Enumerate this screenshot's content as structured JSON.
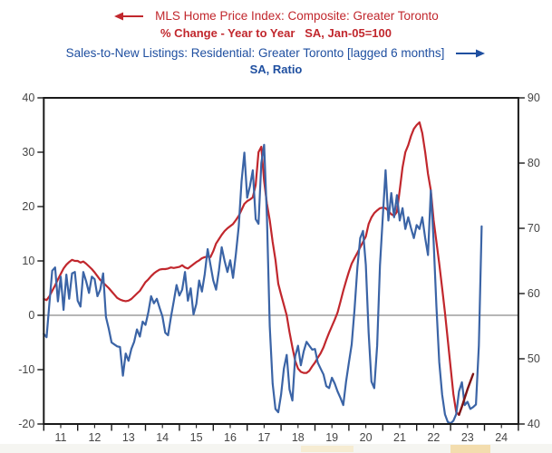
{
  "header": {
    "series1": {
      "title": "MLS Home Price Index: Composite: Greater Toronto",
      "subtitle": "% Change - Year to Year   SA, Jan-05=100",
      "color": "#c1272d",
      "arrow_direction": "left"
    },
    "series2": {
      "title": "Sales-to-New Listings: Residential: Greater Toronto [lagged 6 months]",
      "subtitle": "SA, Ratio",
      "color": "#1f4fa0",
      "arrow_direction": "right"
    }
  },
  "chart_data": {
    "type": "line",
    "title": "MLS Home Price Index vs Sales-to-New Listings, Greater Toronto",
    "x_axis": {
      "start_year": 2011,
      "end_year": 2025,
      "tick_labels": [
        "11",
        "12",
        "13",
        "14",
        "15",
        "16",
        "17",
        "18",
        "19",
        "20",
        "21",
        "22",
        "23",
        "24"
      ],
      "minor_ticks": "semiannual"
    },
    "left_axis": {
      "label": "% Change - Year to Year",
      "min": -20,
      "max": 40,
      "ticks": [
        40,
        30,
        20,
        10,
        0,
        -10,
        -20
      ]
    },
    "right_axis": {
      "label": "SA, Ratio",
      "min": 40,
      "max": 90,
      "ticks": [
        90,
        80,
        70,
        60,
        50,
        40
      ]
    },
    "zero_reference_line_left_value": 0,
    "grid": false,
    "series": [
      {
        "name": "MLS Home Price Index Composite Greater Toronto, % change year-to-year",
        "axis": "left",
        "color": "#c1272d",
        "width": 2.2,
        "start": "2011-01",
        "freq": "monthly",
        "values": [
          3.0,
          2.8,
          3.5,
          4.5,
          5.5,
          6.6,
          7.6,
          8.6,
          9.3,
          9.8,
          10.2,
          10.0,
          10.0,
          9.7,
          9.9,
          9.5,
          9.0,
          8.5,
          7.9,
          7.2,
          6.5,
          6.0,
          5.5,
          5.0,
          4.4,
          3.8,
          3.2,
          2.9,
          2.7,
          2.6,
          2.7,
          3.0,
          3.5,
          4.0,
          4.5,
          5.3,
          6.1,
          6.6,
          7.2,
          7.7,
          8.1,
          8.4,
          8.5,
          8.5,
          8.6,
          8.8,
          8.7,
          8.8,
          8.9,
          9.2,
          8.8,
          8.6,
          9.0,
          9.4,
          9.8,
          10.1,
          10.5,
          10.7,
          10.8,
          10.7,
          11.8,
          13.2,
          14.0,
          14.8,
          15.5,
          16.0,
          16.4,
          16.8,
          17.5,
          18.3,
          19.4,
          20.5,
          21.0,
          21.3,
          21.7,
          24.0,
          30.0,
          31.0,
          24.7,
          20.5,
          17.5,
          13.5,
          10.2,
          5.8,
          3.8,
          1.9,
          0.0,
          -3.1,
          -5.9,
          -8.4,
          -9.8,
          -10.4,
          -10.6,
          -10.6,
          -10.2,
          -9.4,
          -8.7,
          -7.8,
          -7.0,
          -5.9,
          -4.5,
          -3.2,
          -2.0,
          -0.8,
          0.5,
          2.5,
          4.5,
          6.3,
          8.0,
          9.5,
          10.5,
          11.5,
          12.5,
          13.5,
          14.5,
          16.8,
          18.0,
          18.8,
          19.3,
          19.7,
          19.8,
          19.7,
          19.2,
          18.6,
          18.3,
          19.0,
          23.0,
          27.2,
          30.0,
          31.3,
          33.0,
          34.3,
          35.0,
          35.5,
          33.5,
          30.0,
          26.0,
          23.0,
          17.5,
          13.5,
          9.5,
          5.0,
          0.5,
          -4.5,
          -9.5,
          -14.5,
          -17.8,
          -18.3
        ]
      },
      {
        "name": "Sales-to-New Listings Residential Greater Toronto, lagged 6 months, SA ratio",
        "axis": "right",
        "color": "#3b64a6",
        "width": 2.2,
        "start": "2011-01",
        "freq": "monthly",
        "values": [
          53.8,
          53.3,
          58.5,
          63.5,
          64.0,
          58.8,
          62.6,
          57.5,
          62.9,
          59.2,
          63.1,
          63.3,
          58.9,
          58.0,
          63.3,
          61.9,
          60.1,
          62.6,
          62.2,
          59.6,
          60.6,
          63.1,
          56.4,
          54.6,
          52.5,
          52.2,
          51.9,
          51.8,
          47.4,
          50.8,
          49.7,
          51.5,
          52.6,
          54.5,
          53.4,
          55.7,
          55.2,
          57.1,
          59.6,
          58.5,
          59.2,
          57.8,
          56.5,
          54.0,
          53.6,
          56.4,
          58.8,
          61.3,
          59.7,
          60.6,
          63.3,
          58.9,
          60.8,
          56.8,
          58.4,
          62.0,
          60.3,
          63.0,
          66.8,
          64.4,
          62.0,
          60.6,
          63.5,
          67.1,
          65.0,
          63.3,
          65.1,
          62.4,
          66.0,
          70.3,
          77.2,
          81.6,
          74.7,
          76.5,
          78.9,
          71.4,
          70.7,
          80.0,
          82.8,
          71.7,
          55.0,
          46.2,
          42.3,
          41.8,
          44.5,
          48.5,
          50.6,
          45.3,
          43.6,
          50.4,
          52.0,
          49.0,
          51.1,
          52.6,
          52.0,
          51.4,
          51.5,
          49.4,
          48.5,
          47.6,
          45.8,
          45.5,
          47.1,
          46.2,
          45.0,
          44.0,
          42.9,
          46.5,
          49.4,
          52.2,
          57.5,
          64.0,
          68.5,
          69.6,
          64.4,
          54.0,
          46.5,
          45.5,
          52.0,
          64.3,
          71.7,
          78.9,
          71.2,
          75.4,
          71.7,
          75.1,
          71.2,
          73.1,
          69.9,
          71.7,
          70.0,
          68.5,
          70.5,
          69.9,
          71.7,
          68.5,
          65.9,
          75.8,
          68.0,
          58.0,
          49.5,
          44.5,
          41.5,
          40.3,
          40.1,
          40.5,
          41.5,
          45.0,
          46.4,
          42.9,
          43.4,
          42.3,
          42.6,
          43.0,
          52.0,
          70.3
        ]
      },
      {
        "name": "MLS Home Price Index recent months (dark segment)",
        "axis": "left",
        "color": "#7e1416",
        "width": 2.4,
        "start": "2023-04",
        "freq": "monthly",
        "values": [
          -18.3,
          -16.8,
          -15.2,
          -13.6,
          -12.2,
          -10.8
        ]
      }
    ]
  }
}
